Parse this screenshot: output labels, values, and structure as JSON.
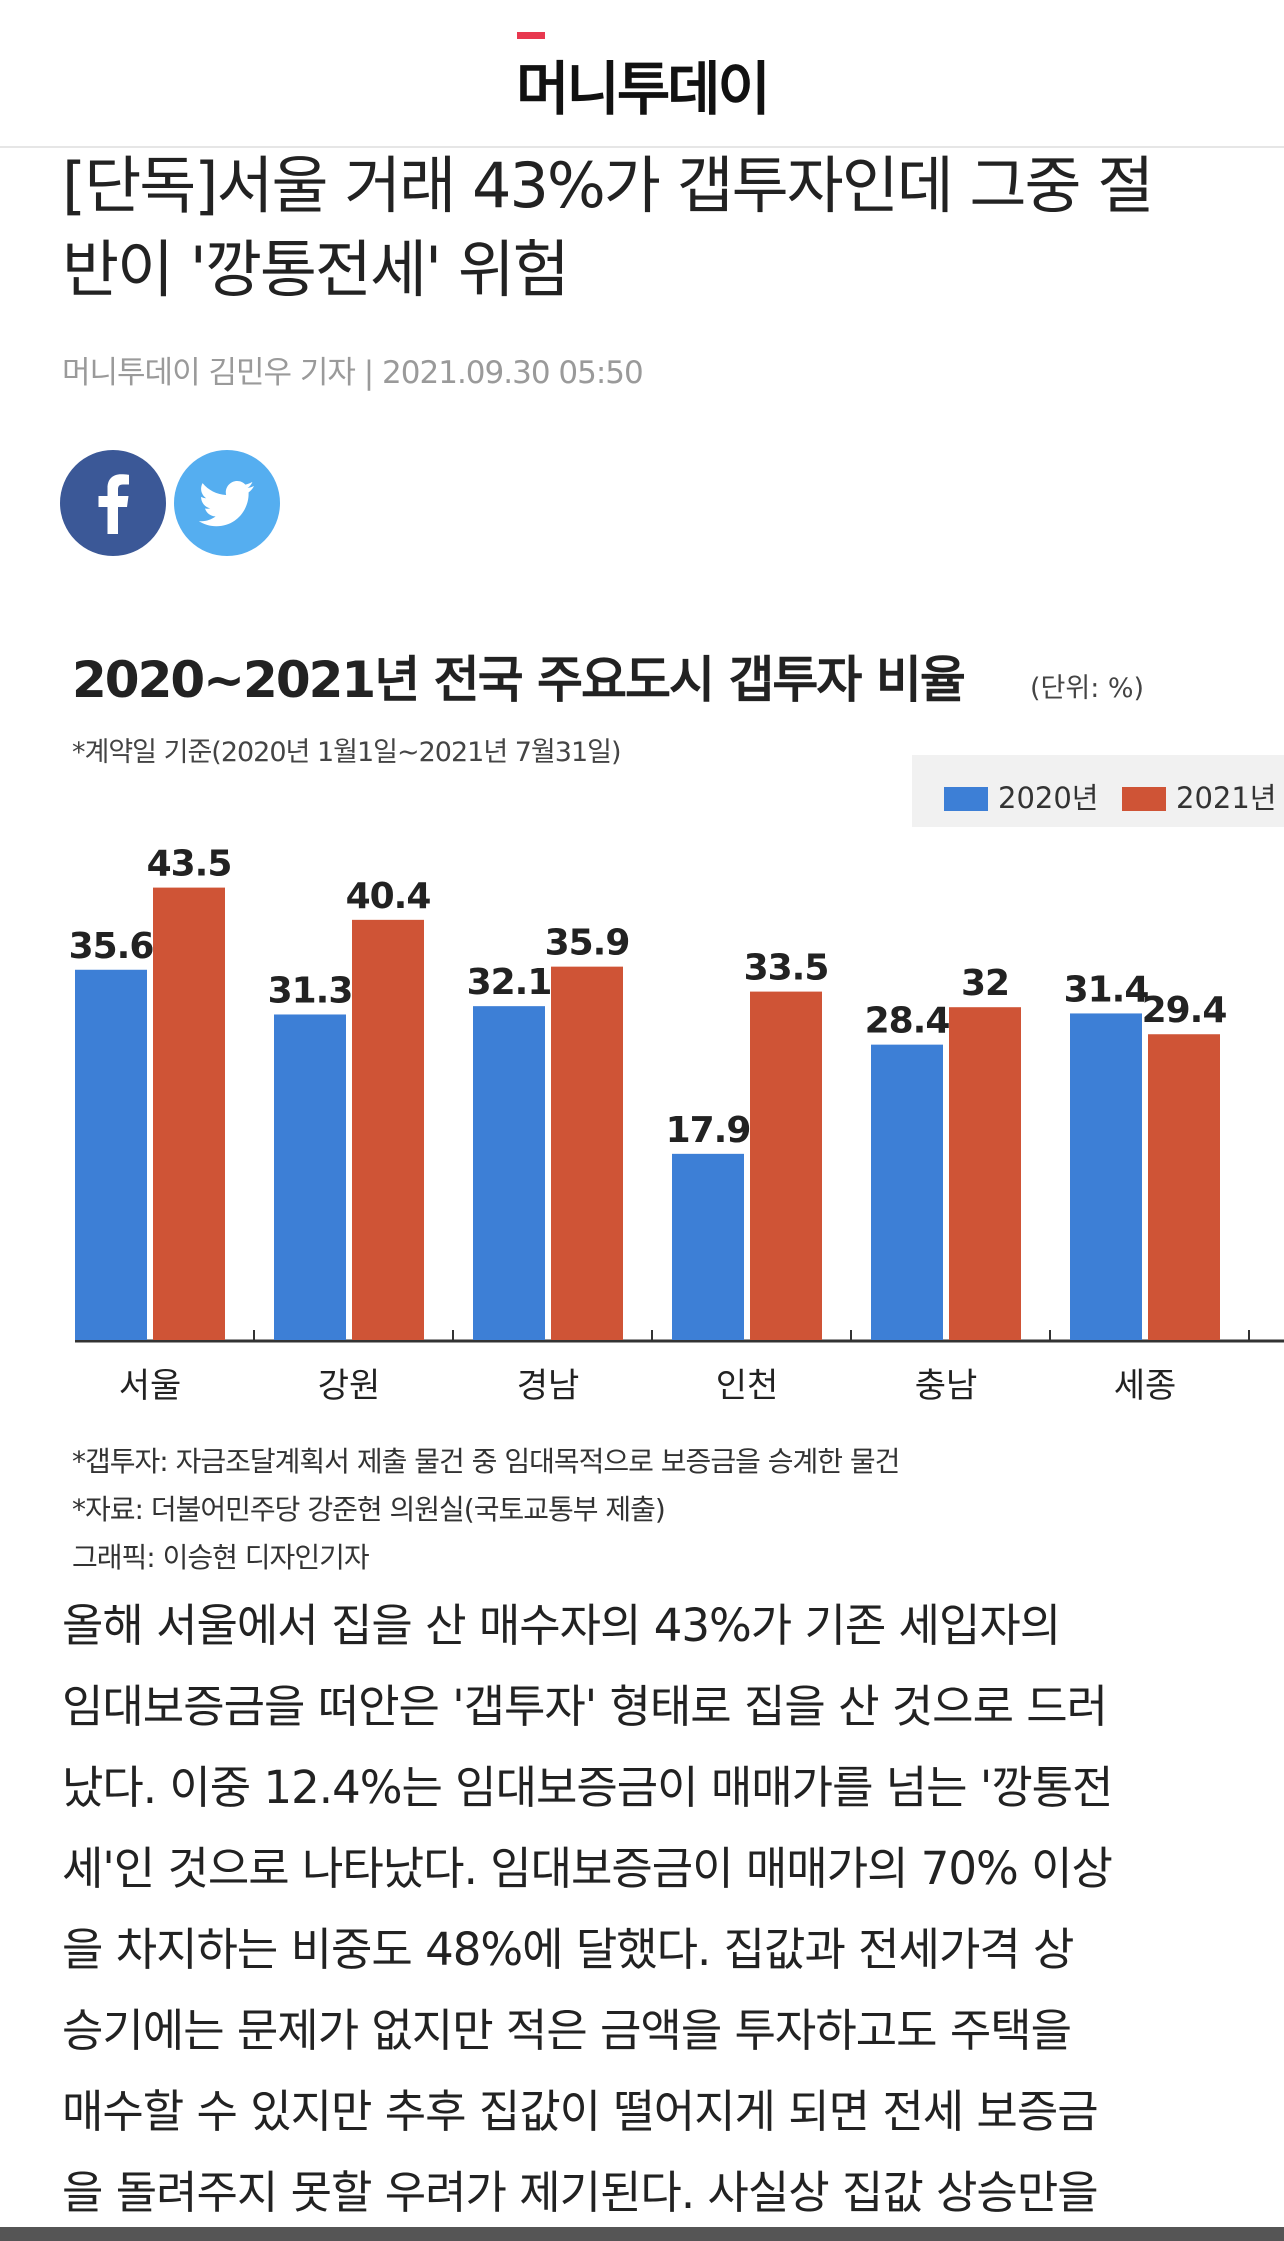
{
  "header": {
    "logo": "머니투데이"
  },
  "article": {
    "title_lines": [
      "[단독]서울 거래 43%가 갭투자인데 그중 절",
      "반이 '깡통전세' 위험"
    ],
    "byline": "머니투데이 김민우 기자 | 2021.09.30 05:50",
    "body_lines": [
      "올해 서울에서 집을 산 매수자의 43%가 기존 세입자의",
      "임대보증금을 떠안은 '갭투자' 형태로 집을 산 것으로 드러",
      "났다. 이중 12.4%는 임대보증금이 매매가를 넘는 '깡통전",
      "세'인 것으로 나타났다. 임대보증금이 매매가의 70% 이상",
      "을 차지하는 비중도 48%에 달했다. 집값과 전세가격 상",
      "승기에는 문제가 없지만 적은 금액을 투자하고도 주택을",
      "매수할 수 있지만 추후 집값이 떨어지게 되면 전세 보증금",
      "을 돌려주지 못할 우려가 제기된다. 사실상 집값 상승만을"
    ]
  },
  "share": {
    "facebook": "facebook-icon",
    "twitter": "twitter-icon",
    "facebook_color": "#3b5897",
    "twitter_color": "#55aef0"
  },
  "chart_data": {
    "type": "bar",
    "title": "2020~2021년 전국 주요도시 갭투자 비율",
    "unit": "(단위: %)",
    "subtitle": "*계약일 기준(2020년 1월1일~2021년 7월31일)",
    "categories": [
      "서울",
      "강원",
      "경남",
      "인천",
      "충남",
      "세종"
    ],
    "series": [
      {
        "name": "2020년",
        "color": "#3d7fd6",
        "values": [
          35.6,
          31.3,
          32.1,
          17.9,
          28.4,
          31.4
        ]
      },
      {
        "name": "2021년",
        "color": "#cf5436",
        "values": [
          43.5,
          40.4,
          35.9,
          33.5,
          32,
          29.4
        ]
      }
    ],
    "value_labels": [
      [
        "35.6",
        "31.3",
        "32.1",
        "17.9",
        "28.4",
        "31.4"
      ],
      [
        "43.5",
        "40.4",
        "35.9",
        "33.5",
        "32",
        "29.4"
      ]
    ],
    "ylim": [
      0,
      50
    ],
    "grid": false,
    "legend": "top-right",
    "footnotes": [
      "*갭투자: 자금조달계획서 제출 물건 중 임대목적으로 보증금을 승계한 물건",
      "*자료: 더불어민주당 강준현 의원실(국토교통부 제출)",
      "그래픽: 이승현 디자인기자"
    ]
  }
}
